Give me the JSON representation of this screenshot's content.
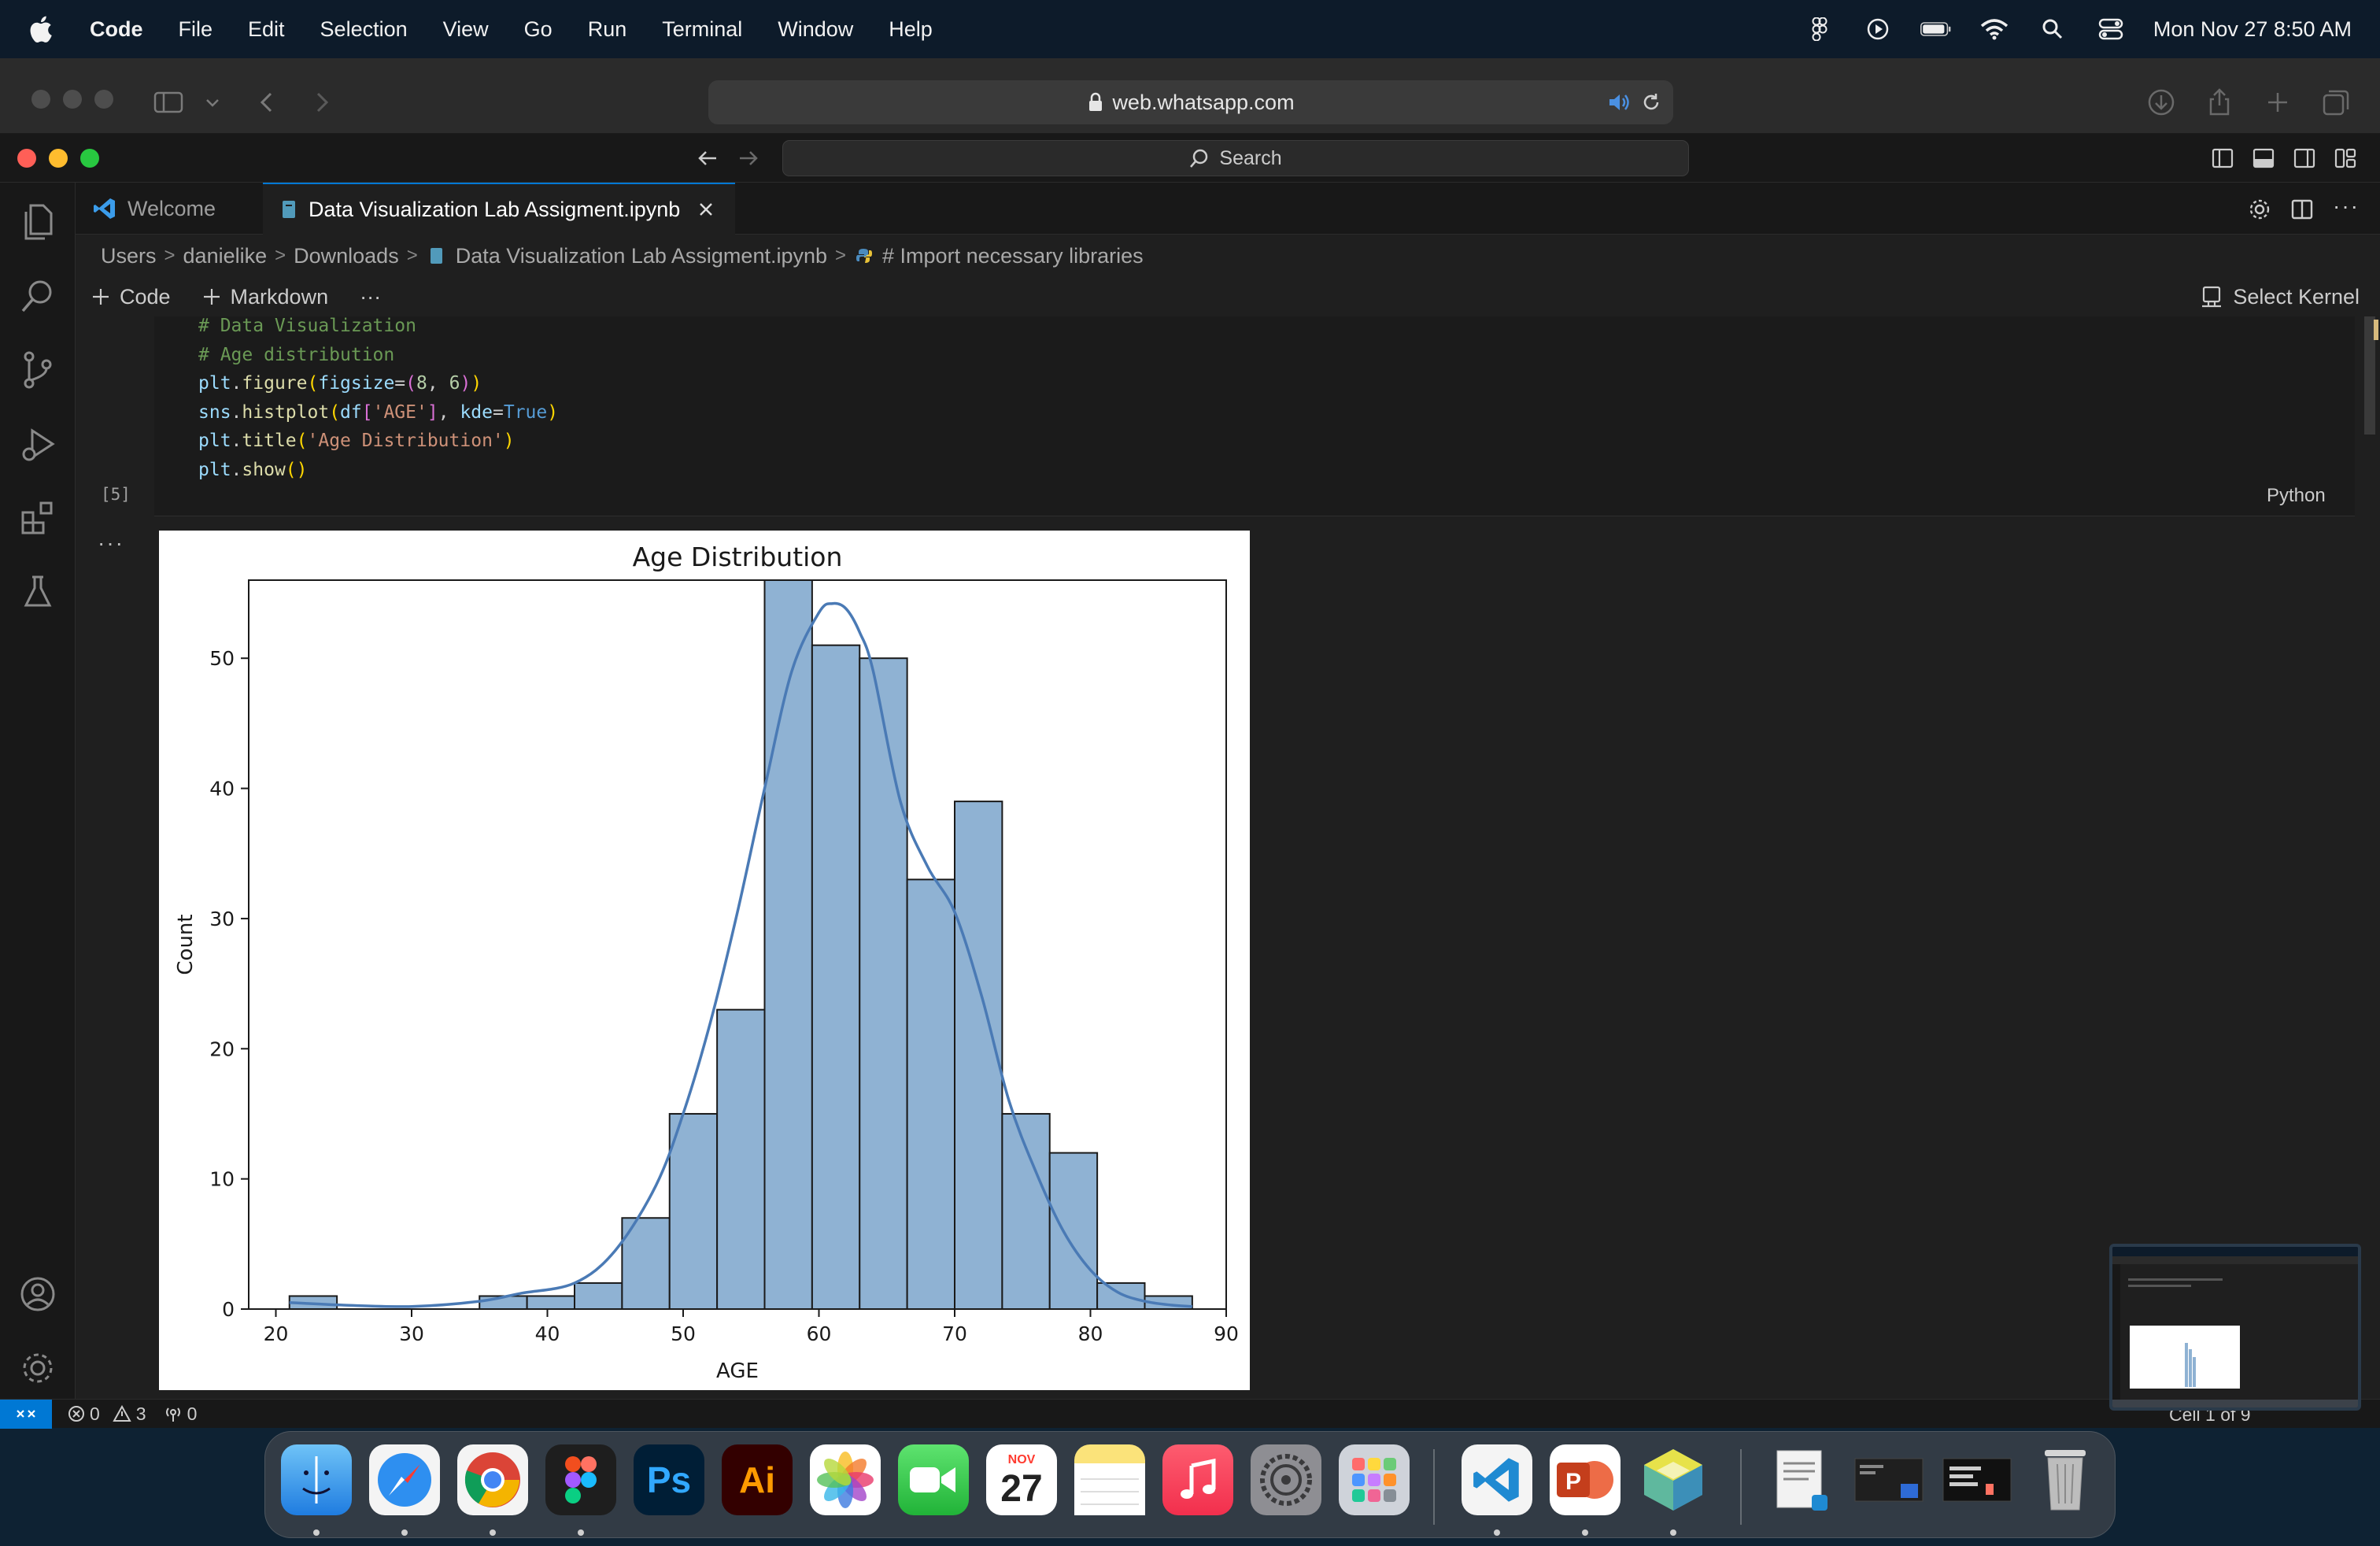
{
  "menubar": {
    "app_name": "Code",
    "items": [
      "File",
      "Edit",
      "Selection",
      "View",
      "Go",
      "Run",
      "Terminal",
      "Window",
      "Help"
    ],
    "clock": "Mon Nov 27  8:50 AM"
  },
  "safari": {
    "url": "web.whatsapp.com"
  },
  "vscode": {
    "command_center_placeholder": "Search",
    "tabs": [
      {
        "label": "Welcome",
        "active": false
      },
      {
        "label": "Data Visualization Lab Assigment.ipynb",
        "active": true
      }
    ],
    "breadcrumb": [
      "Users",
      "danielike",
      "Downloads",
      "Data Visualization Lab Assigment.ipynb",
      "# Import necessary libraries"
    ],
    "notebook_toolbar": {
      "code_label": "Code",
      "markdown_label": "Markdown",
      "more": "···",
      "kernel_label": "Select Kernel"
    },
    "cell": {
      "lines": [
        "# Data Visualization",
        "# Age distribution",
        "plt.figure(figsize=(8, 6))",
        "sns.histplot(df['AGE'], kde=True)",
        "plt.title('Age Distribution')",
        "plt.show()"
      ],
      "execution_count": "[5]",
      "language": "Python",
      "output_more": "···"
    },
    "status_bar": {
      "errors": "0",
      "warnings": "3",
      "ports": "0",
      "cell_position": "Cell 1 of 9"
    }
  },
  "chart_data": {
    "type": "bar",
    "title": "Age Distribution",
    "xlabel": "AGE",
    "ylabel": "Count",
    "xlim": [
      18,
      90
    ],
    "ylim": [
      0,
      56
    ],
    "xticks": [
      20,
      30,
      40,
      50,
      60,
      70,
      80,
      90
    ],
    "yticks": [
      0,
      10,
      20,
      30,
      40,
      50
    ],
    "bins": [
      {
        "x0": 21.0,
        "x1": 24.5,
        "count": 1
      },
      {
        "x0": 24.5,
        "x1": 28.0,
        "count": 0
      },
      {
        "x0": 28.0,
        "x1": 31.5,
        "count": 0
      },
      {
        "x0": 31.5,
        "x1": 35.0,
        "count": 0
      },
      {
        "x0": 35.0,
        "x1": 38.5,
        "count": 1
      },
      {
        "x0": 38.5,
        "x1": 42.0,
        "count": 1
      },
      {
        "x0": 42.0,
        "x1": 45.5,
        "count": 2
      },
      {
        "x0": 45.5,
        "x1": 49.0,
        "count": 7
      },
      {
        "x0": 49.0,
        "x1": 52.5,
        "count": 15
      },
      {
        "x0": 52.5,
        "x1": 56.0,
        "count": 23
      },
      {
        "x0": 56.0,
        "x1": 59.5,
        "count": 56
      },
      {
        "x0": 59.5,
        "x1": 63.0,
        "count": 51
      },
      {
        "x0": 63.0,
        "x1": 66.5,
        "count": 50
      },
      {
        "x0": 66.5,
        "x1": 70.0,
        "count": 33
      },
      {
        "x0": 70.0,
        "x1": 73.5,
        "count": 39
      },
      {
        "x0": 73.5,
        "x1": 77.0,
        "count": 15
      },
      {
        "x0": 77.0,
        "x1": 80.5,
        "count": 12
      },
      {
        "x0": 80.5,
        "x1": 84.0,
        "count": 2
      },
      {
        "x0": 84.0,
        "x1": 87.5,
        "count": 1
      }
    ],
    "kde": {
      "x": [
        21,
        25,
        30,
        35,
        38,
        42,
        45,
        48,
        50,
        52,
        54,
        56,
        58,
        60,
        61,
        62,
        63,
        64,
        66,
        68,
        70,
        72,
        74,
        76,
        78,
        80,
        82,
        84,
        86,
        87.5
      ],
      "y": [
        0.5,
        0.3,
        0.2,
        0.6,
        1.2,
        2.0,
        4.5,
        9.5,
        15.0,
        22.0,
        30.5,
        40.0,
        49.0,
        53.5,
        54.2,
        53.8,
        52.0,
        49.0,
        39.0,
        34.0,
        30.5,
        24.0,
        16.0,
        10.5,
        6.0,
        3.0,
        1.3,
        0.6,
        0.3,
        0.2
      ]
    },
    "bar_fill": "#8fb2d3",
    "kde_color": "#4a7ab5",
    "grid": false,
    "legend": "none"
  }
}
